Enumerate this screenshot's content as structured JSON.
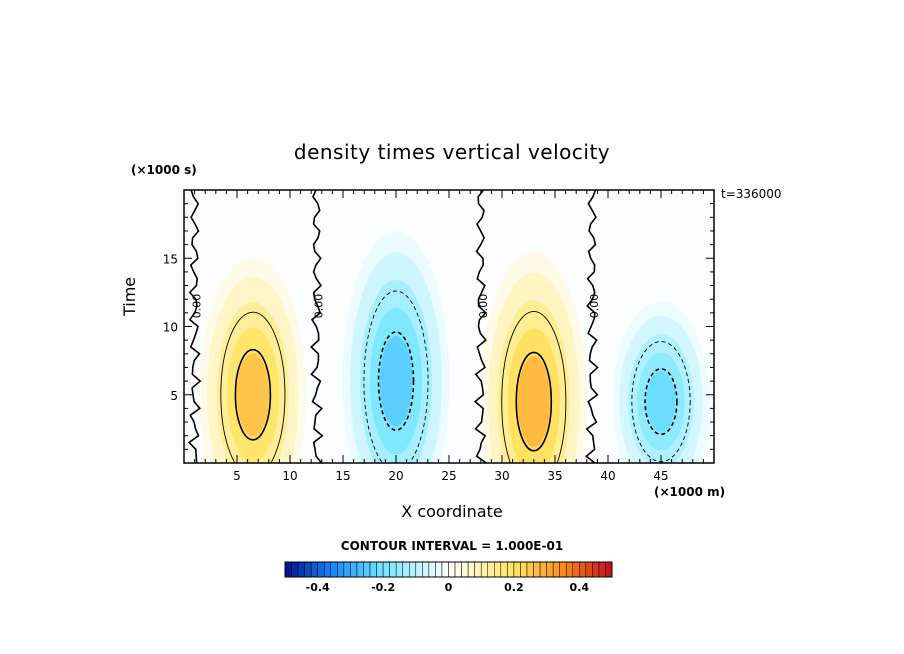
{
  "chart_data": {
    "type": "heatmap",
    "title": "density times vertical velocity",
    "xlabel": "X coordinate",
    "ylabel": "Time",
    "x_unit": "(×1000 m)",
    "y_unit": "(×1000 s)",
    "time_stamp": "t=336000",
    "xlim": [
      0,
      50
    ],
    "ylim": [
      0,
      20
    ],
    "x_ticks": [
      5,
      10,
      15,
      20,
      25,
      30,
      35,
      40,
      45
    ],
    "y_ticks": [
      5,
      10,
      15
    ],
    "contour_interval_text": "CONTOUR INTERVAL = 1.000E-01",
    "zero_contour_label": "0.00",
    "zero_contours_x": [
      1,
      12.5,
      28,
      38.5
    ],
    "colorbar": {
      "range": [
        -0.5,
        0.5
      ],
      "ticks": [
        -0.4,
        -0.2,
        0,
        0.2,
        0.4
      ],
      "tick_labels": [
        "-0.4",
        "-0.2",
        "0",
        "0.2",
        "0.4"
      ]
    },
    "blobs": [
      {
        "x": 6.5,
        "y": 5,
        "rx": 5.5,
        "ry": 11,
        "peak": 0.3
      },
      {
        "x": 20,
        "y": 6,
        "rx": 5.5,
        "ry": 12,
        "peak": -0.28
      },
      {
        "x": 33,
        "y": 4.5,
        "rx": 5.5,
        "ry": 12,
        "peak": 0.32
      },
      {
        "x": 45,
        "y": 4.5,
        "rx": 5,
        "ry": 8,
        "peak": -0.25
      }
    ]
  }
}
